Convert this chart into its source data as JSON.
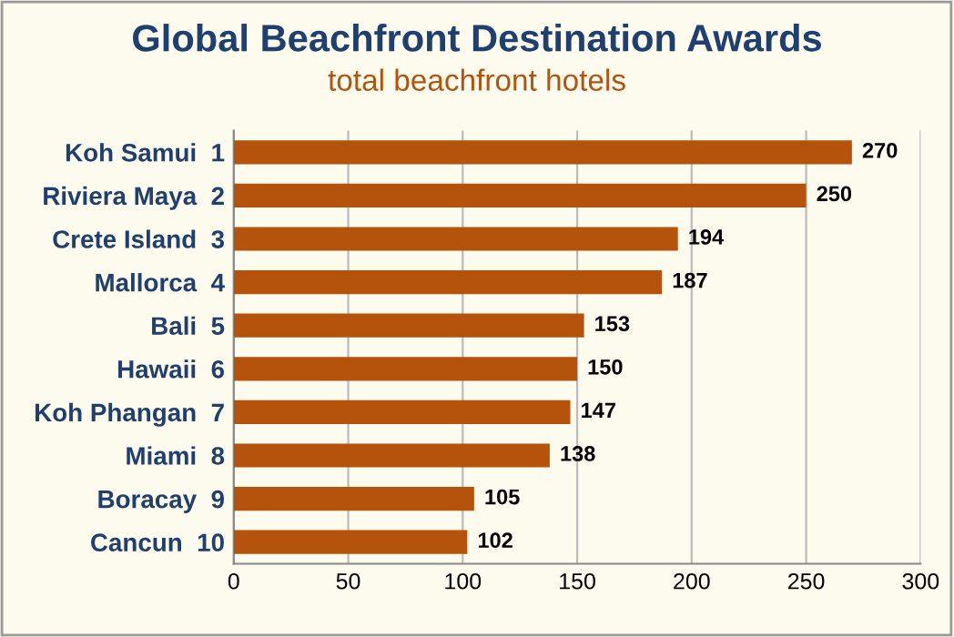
{
  "chart_data": {
    "type": "bar",
    "orientation": "horizontal",
    "title": "Global Beachfront Destination Awards",
    "subtitle": "total beachfront hotels",
    "categories": [
      "Koh Samui  1",
      "Riviera Maya  2",
      "Crete Island  3",
      "Mallorca  4",
      "Bali  5",
      "Hawaii  6",
      "Koh Phangan  7",
      "Miami  8",
      "Boracay  9",
      "Cancun  10"
    ],
    "values": [
      270,
      250,
      194,
      187,
      153,
      150,
      147,
      138,
      105,
      102
    ],
    "color": "#b5530c",
    "data_labels": true,
    "xlim": [
      0,
      300
    ],
    "xticks": [
      0,
      50,
      100,
      150,
      200,
      250,
      300
    ],
    "grid": "x"
  }
}
